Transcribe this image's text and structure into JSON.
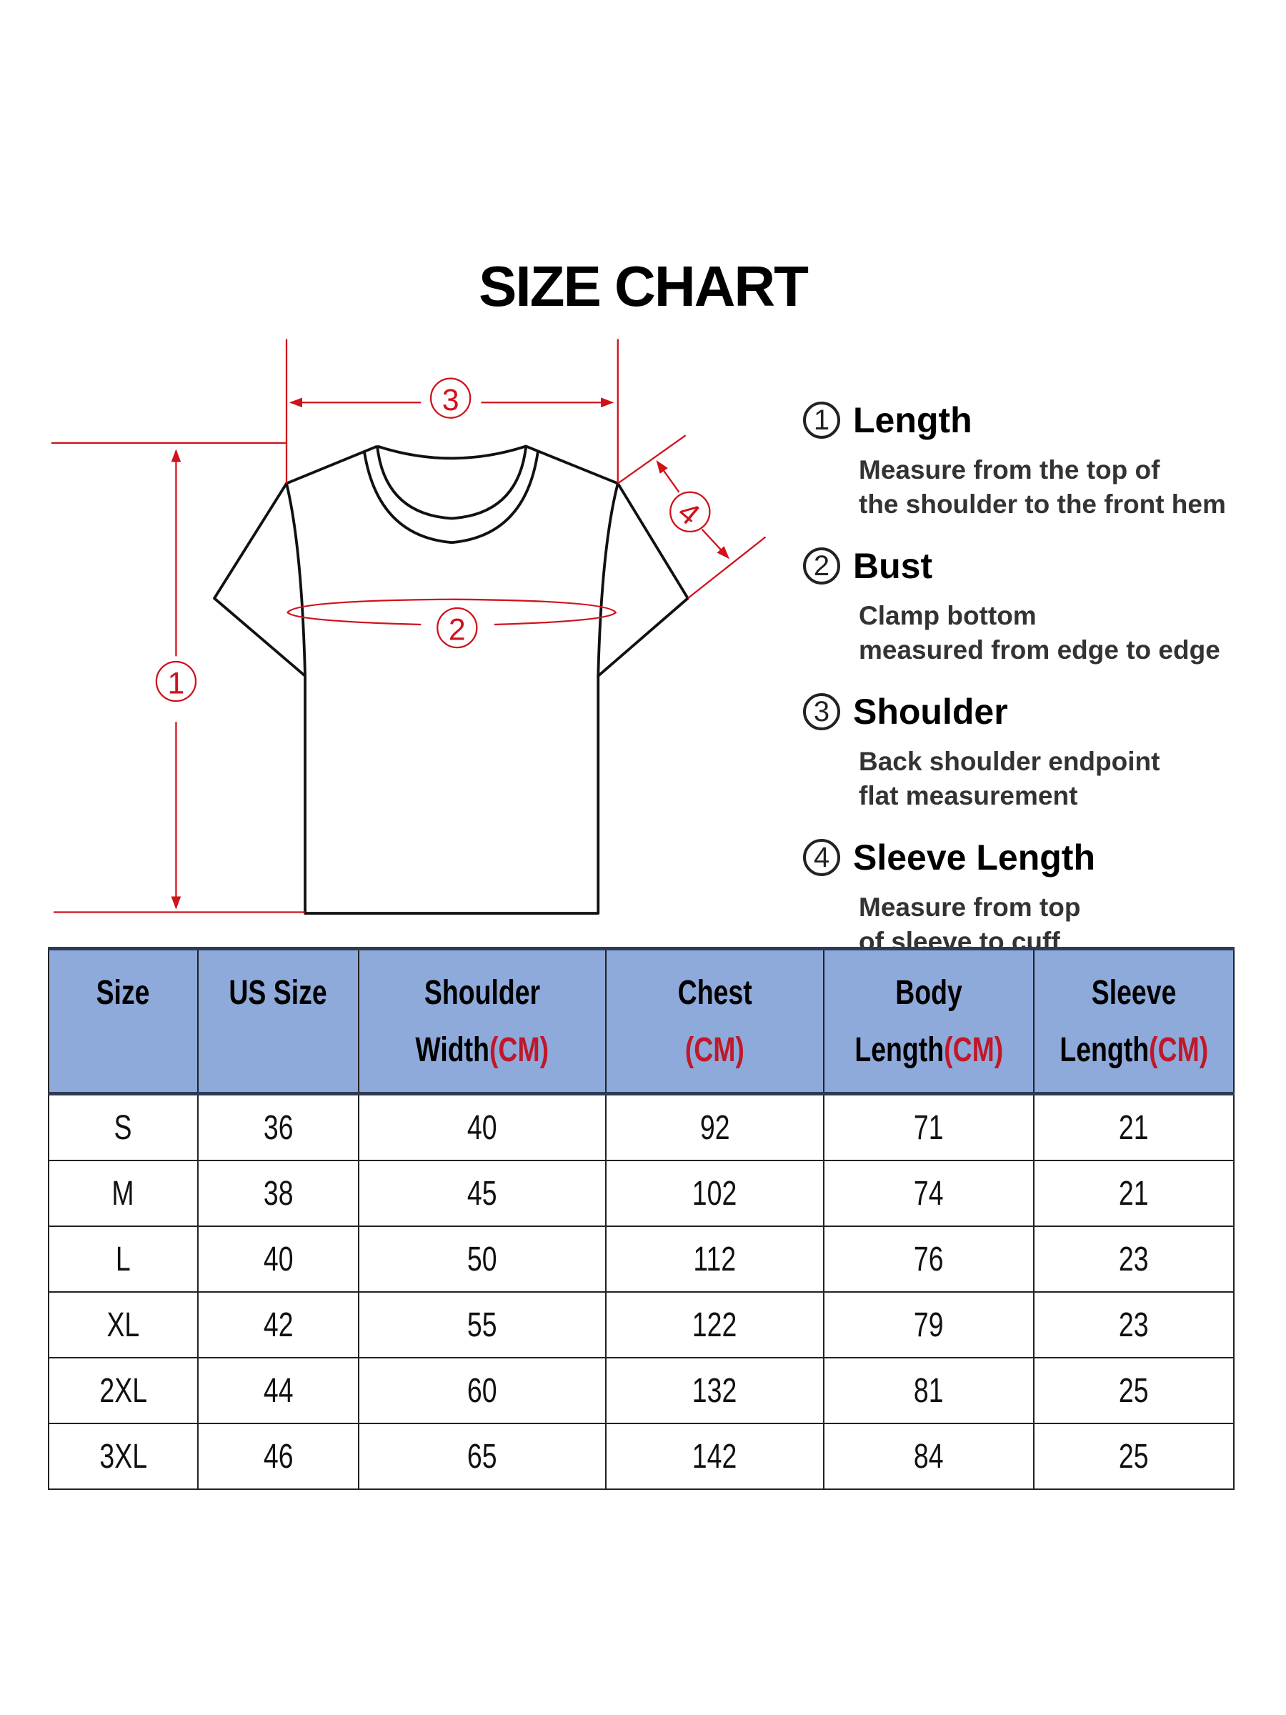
{
  "title": "SIZE CHART",
  "diagram": {
    "markers": [
      "1",
      "2",
      "3",
      "4"
    ],
    "accent_color": "#d0121b",
    "outline_color": "#111111"
  },
  "legend": [
    {
      "num": "1",
      "title": "Length",
      "lines": [
        "Measure from the top of",
        "the shoulder to the front hem"
      ]
    },
    {
      "num": "2",
      "title": "Bust",
      "lines": [
        "Clamp bottom",
        "measured from edge to edge"
      ]
    },
    {
      "num": "3",
      "title": "Shoulder",
      "lines": [
        "Back shoulder endpoint",
        "flat measurement"
      ]
    },
    {
      "num": "4",
      "title": "Sleeve Length",
      "lines": [
        "Measure from top",
        "of sleeve to cuff"
      ]
    }
  ],
  "table": {
    "header_color": "#8eaadb",
    "unit_color": "#c0182a",
    "headers": [
      {
        "line1": "Size",
        "line2": "",
        "unit": ""
      },
      {
        "line1": "US Size",
        "line2": "",
        "unit": ""
      },
      {
        "line1": "Shoulder",
        "line2": "Width",
        "unit": "(CM)"
      },
      {
        "line1": "Chest",
        "line2": "",
        "unit": "(CM)"
      },
      {
        "line1": "Body",
        "line2": "Length",
        "unit": "(CM)"
      },
      {
        "line1": "Sleeve",
        "line2": "Length",
        "unit": "(CM)"
      }
    ],
    "rows": [
      [
        "S",
        "36",
        "40",
        "92",
        "71",
        "21"
      ],
      [
        "M",
        "38",
        "45",
        "102",
        "74",
        "21"
      ],
      [
        "L",
        "40",
        "50",
        "112",
        "76",
        "23"
      ],
      [
        "XL",
        "42",
        "55",
        "122",
        "79",
        "23"
      ],
      [
        "2XL",
        "44",
        "60",
        "132",
        "81",
        "25"
      ],
      [
        "3XL",
        "46",
        "65",
        "142",
        "84",
        "25"
      ]
    ]
  }
}
